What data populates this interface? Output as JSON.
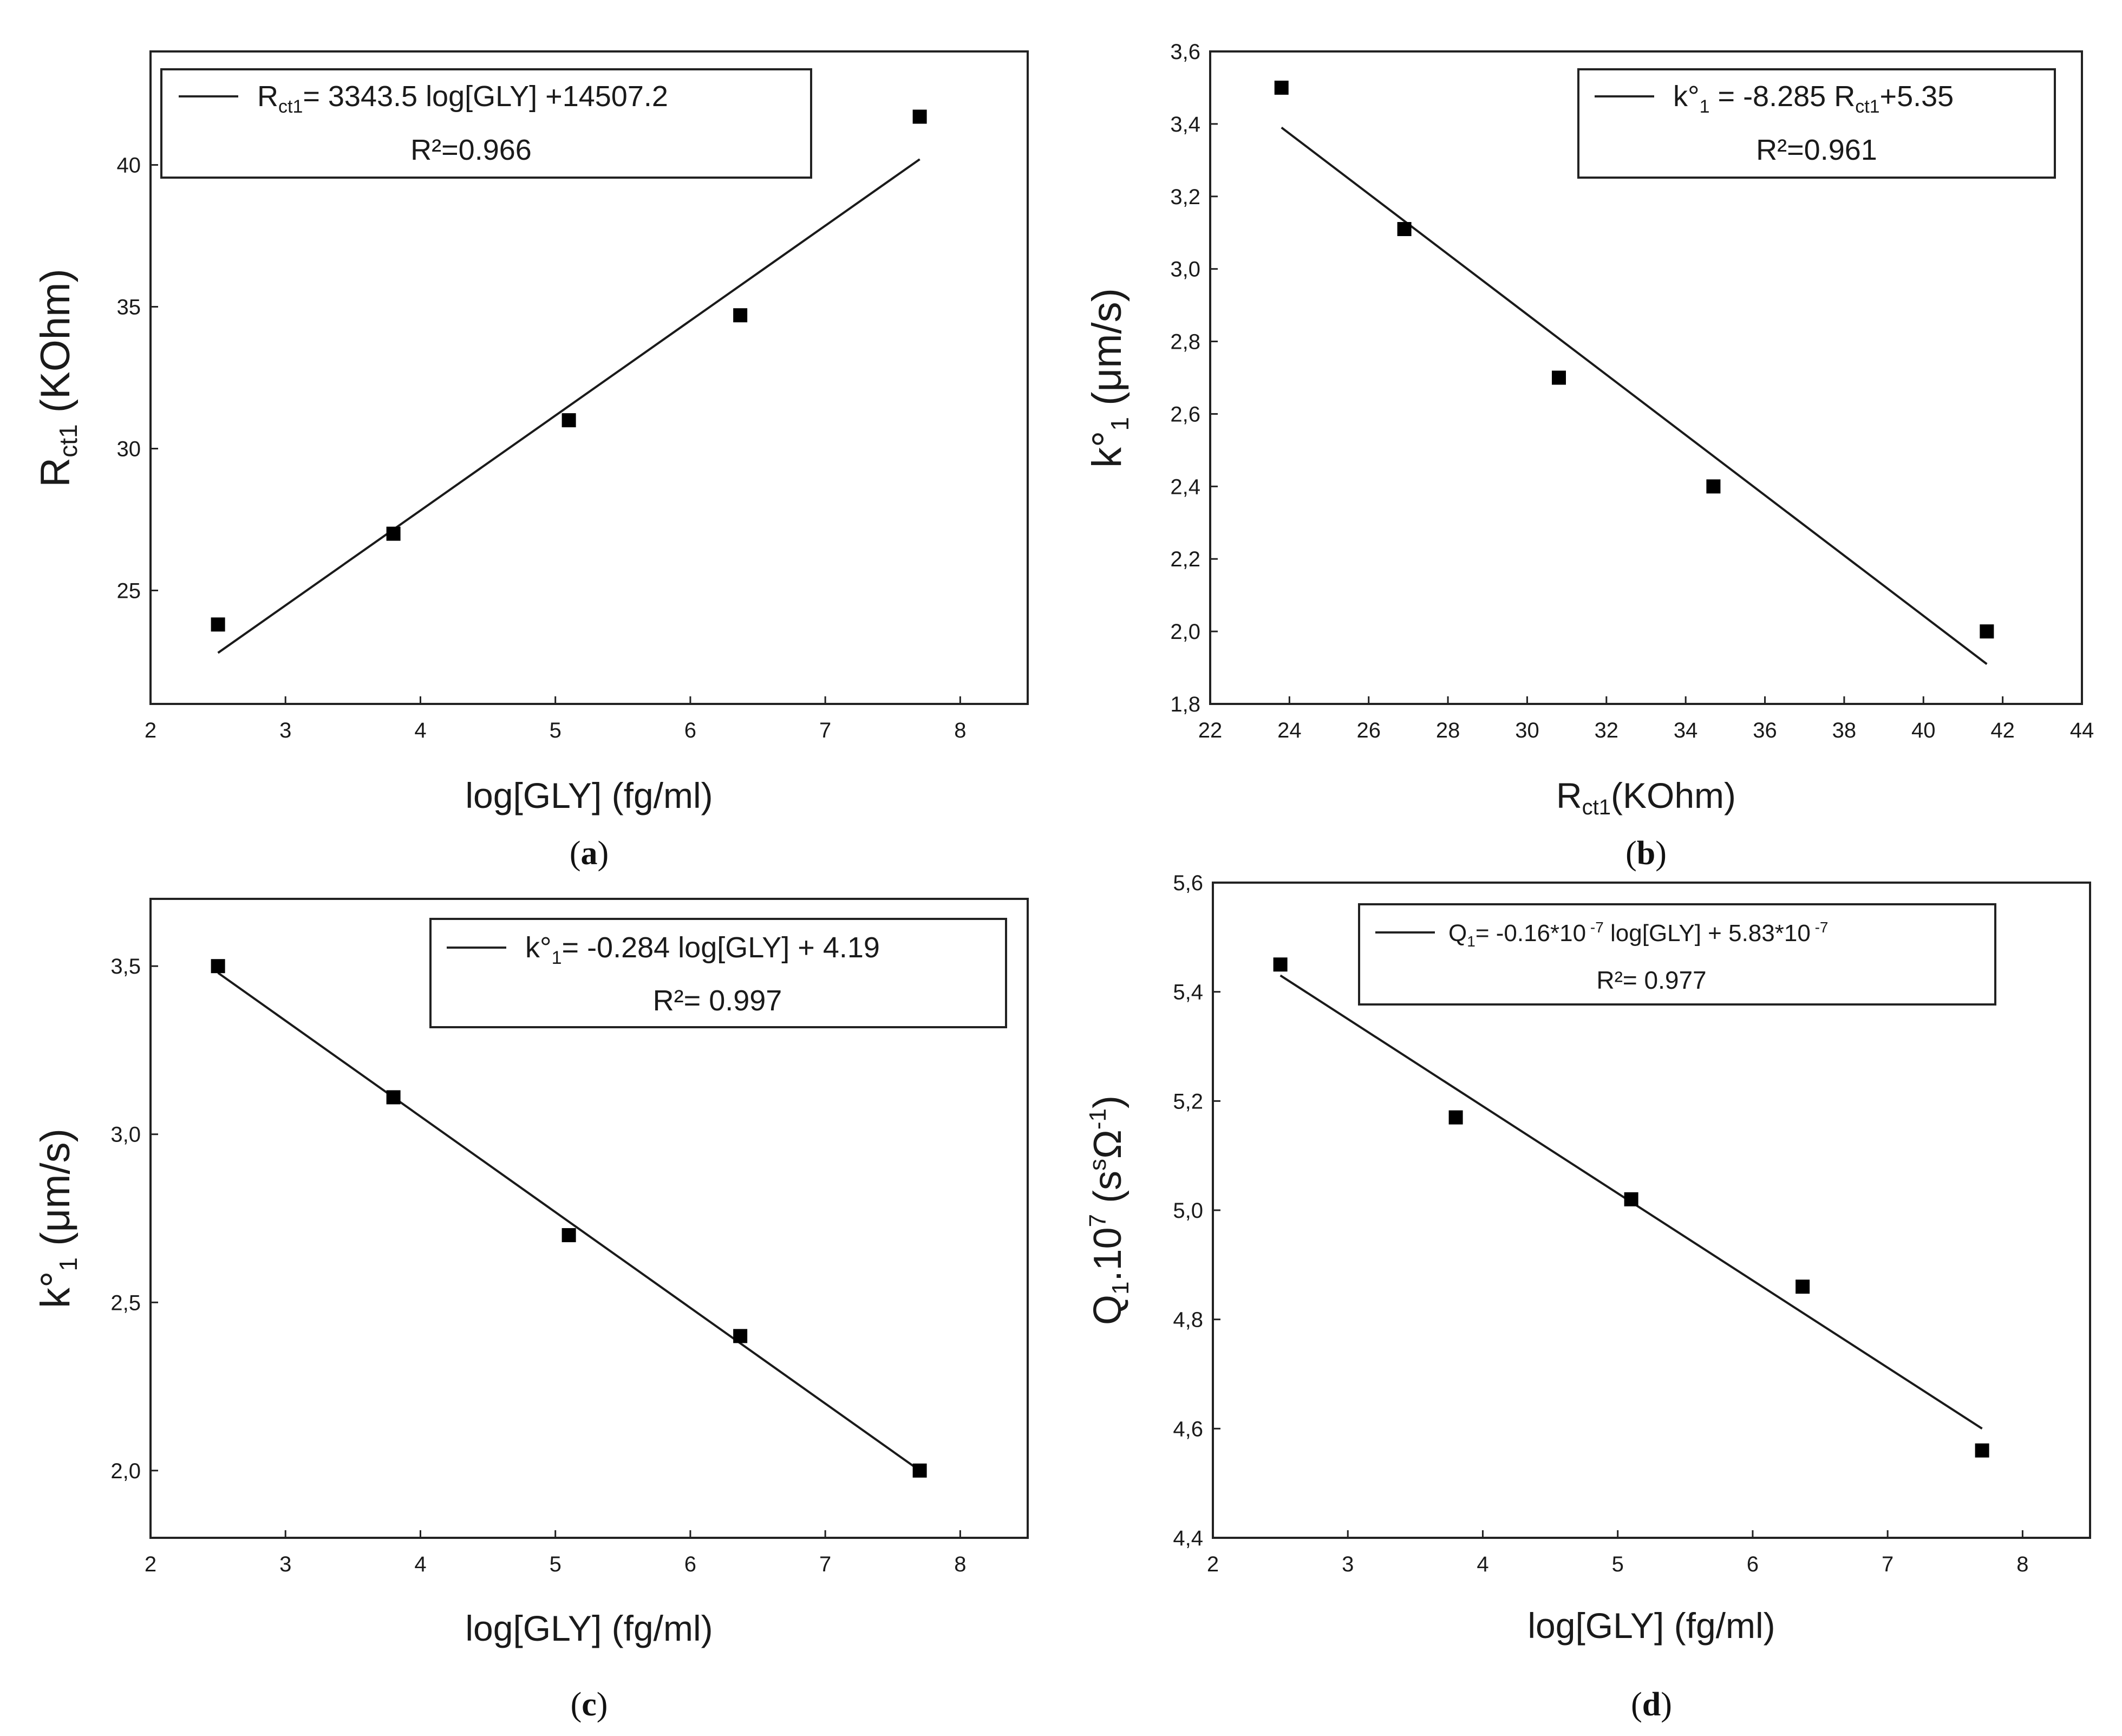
{
  "figure": {
    "panels": [
      "a",
      "b",
      "c",
      "d"
    ]
  },
  "chart_data": [
    {
      "id": "a",
      "type": "scatter",
      "caption_letter": "a",
      "xlabel": "log[GLY] (fg/ml)",
      "ylabel_main": "R",
      "ylabel_sub": "ct1",
      "ylabel_rest": " (KOhm)",
      "xlim": [
        2,
        8.5
      ],
      "ylim": [
        21,
        44
      ],
      "xticks": [
        "2",
        "3",
        "4",
        "5",
        "6",
        "7",
        "8"
      ],
      "xtick_values": [
        2,
        3,
        4,
        5,
        6,
        7,
        8
      ],
      "yticks": [
        "25",
        "30",
        "35",
        "40"
      ],
      "ytick_values": [
        25,
        30,
        35,
        40
      ],
      "points": {
        "x": [
          2.5,
          3.8,
          5.1,
          6.37,
          7.7
        ],
        "y": [
          23.8,
          27.0,
          31.0,
          34.7,
          41.7
        ]
      },
      "fit": {
        "x": [
          2.5,
          7.7
        ],
        "y": [
          22.8,
          40.2
        ]
      },
      "legend": {
        "position": "top-left",
        "eq_main": "R",
        "eq_sub": "ct1",
        "eq_rest": "= 3343.5 log[GLY] +14507.2",
        "r2": "R²=0.966"
      }
    },
    {
      "id": "b",
      "type": "scatter",
      "caption_letter": "b",
      "xlabel_main": "R",
      "xlabel_sub": "ct1",
      "xlabel_rest": "(KOhm)",
      "ylabel_main": "k°",
      "ylabel_sub": "1",
      "ylabel_rest": " (μm/s)",
      "xlim": [
        22,
        44
      ],
      "ylim": [
        1.8,
        3.6
      ],
      "xticks": [
        "22",
        "24",
        "26",
        "28",
        "30",
        "32",
        "34",
        "36",
        "38",
        "40",
        "42",
        "44"
      ],
      "xtick_values": [
        22,
        24,
        26,
        28,
        30,
        32,
        34,
        36,
        38,
        40,
        42,
        44
      ],
      "yticks": [
        "1,8",
        "2,0",
        "2,2",
        "2,4",
        "2,6",
        "2,8",
        "3,0",
        "3,2",
        "3,4",
        "3,6"
      ],
      "ytick_values": [
        1.8,
        2.0,
        2.2,
        2.4,
        2.6,
        2.8,
        3.0,
        3.2,
        3.4,
        3.6
      ],
      "points": {
        "x": [
          23.8,
          26.9,
          30.8,
          34.7,
          41.6
        ],
        "y": [
          3.5,
          3.11,
          2.7,
          2.4,
          2.0
        ]
      },
      "fit": {
        "x": [
          23.8,
          41.6
        ],
        "y": [
          3.39,
          1.91
        ]
      },
      "legend": {
        "position": "top-right",
        "eq_main": "k°",
        "eq_sub": "1",
        "eq_mid": " = -8.285 R",
        "eq_sub2": "ct1",
        "eq_rest": "+5.35",
        "r2": "R²=0.961"
      }
    },
    {
      "id": "c",
      "type": "scatter",
      "caption_letter": "c",
      "xlabel": "log[GLY] (fg/ml)",
      "ylabel_main": "k°",
      "ylabel_sub": "1",
      "ylabel_rest": " (μm/s)",
      "xlim": [
        2,
        8.5
      ],
      "ylim": [
        1.8,
        3.7
      ],
      "xticks": [
        "2",
        "3",
        "4",
        "5",
        "6",
        "7",
        "8"
      ],
      "xtick_values": [
        2,
        3,
        4,
        5,
        6,
        7,
        8
      ],
      "yticks": [
        "2,0",
        "2,5",
        "3,0",
        "3,5"
      ],
      "ytick_values": [
        2.0,
        2.5,
        3.0,
        3.5
      ],
      "points": {
        "x": [
          2.5,
          3.8,
          5.1,
          6.37,
          7.7
        ],
        "y": [
          3.5,
          3.11,
          2.7,
          2.4,
          2.0
        ]
      },
      "fit": {
        "x": [
          2.5,
          7.7
        ],
        "y": [
          3.48,
          2.0
        ]
      },
      "legend": {
        "position": "top-right",
        "eq_main": "k°",
        "eq_sub": "1",
        "eq_rest": "= -0.284 log[GLY] + 4.19",
        "r2": "R²= 0.997"
      }
    },
    {
      "id": "d",
      "type": "scatter",
      "caption_letter": "d",
      "xlabel": "log[GLY] (fg/ml)",
      "ylabel_main": "Q",
      "ylabel_sub": "1",
      "ylabel_rest": ".10",
      "ylabel_sup": "7",
      "ylabel_tail": " (s",
      "ylabel_sup2": "s",
      "ylabel_omega": "Ω",
      "ylabel_sup3": "-1",
      "ylabel_end": ")",
      "xlim": [
        2,
        8.5
      ],
      "ylim": [
        4.4,
        5.6
      ],
      "xticks": [
        "2",
        "3",
        "4",
        "5",
        "6",
        "7",
        "8"
      ],
      "xtick_values": [
        2,
        3,
        4,
        5,
        6,
        7,
        8
      ],
      "yticks": [
        "4,4",
        "4,6",
        "4,8",
        "5,0",
        "5,2",
        "5,4",
        "5,6"
      ],
      "ytick_values": [
        4.4,
        4.6,
        4.8,
        5.0,
        5.2,
        5.4,
        5.6
      ],
      "points": {
        "x": [
          2.5,
          3.8,
          5.1,
          6.37,
          7.7
        ],
        "y": [
          5.45,
          5.17,
          5.02,
          4.86,
          4.56
        ]
      },
      "fit": {
        "x": [
          2.5,
          7.7
        ],
        "y": [
          5.43,
          4.6
        ]
      },
      "legend": {
        "position": "top-right",
        "eq_main": "Q",
        "eq_sub": "1",
        "eq_rest": "= -0.16*10",
        "eq_sup": " -7",
        "eq_rest2": " log[GLY] + 5.83*10",
        "eq_sup2": " -7",
        "r2": "R²= 0.977"
      }
    }
  ]
}
